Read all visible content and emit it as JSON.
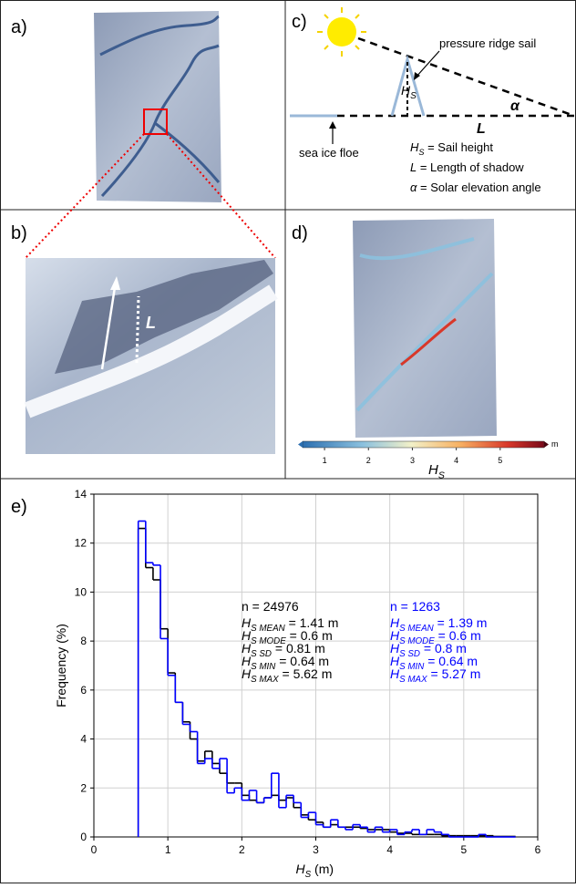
{
  "panels": {
    "a": {
      "label": "a)"
    },
    "b": {
      "label": "b)",
      "shadow_label": "L"
    },
    "c": {
      "label": "c)",
      "ridge_label": "pressure ridge sail",
      "height_symbol": {
        "h": "H",
        "sub": "S"
      },
      "angle_symbol": "α",
      "length_symbol": "L",
      "floe_label": "sea ice floe",
      "legend": [
        {
          "h": "H",
          "sub": "S",
          "rest": " = Sail height"
        },
        {
          "h": "L",
          "rest": " = Length of shadow"
        },
        {
          "h": "α",
          "rest": " = Solar elevation angle"
        }
      ]
    },
    "d": {
      "label": "d)",
      "colorbar": {
        "lim": [
          0.5,
          6
        ],
        "ticks": [
          1,
          2,
          3,
          4,
          5
        ],
        "unit": "m",
        "label": {
          "h": "H",
          "sub": "S"
        }
      }
    }
  },
  "chart_data": {
    "type": "histogram",
    "panel_label": "e)",
    "xlabel": {
      "h": "H",
      "sub": "S",
      "rest": " (m)"
    },
    "ylabel": "Frequency (%)",
    "bins": [
      0.6,
      0.7,
      0.8,
      0.9,
      1.0,
      1.1,
      1.2,
      1.3,
      1.4,
      1.5,
      1.6,
      1.7,
      1.8,
      1.9,
      2.0,
      2.1,
      2.2,
      2.3,
      2.4,
      2.5,
      2.6,
      2.7,
      2.8,
      2.9,
      3.0,
      3.1,
      3.2,
      3.3,
      3.4,
      3.5,
      3.6,
      3.7,
      3.8,
      3.9,
      4.0,
      4.1,
      4.2,
      4.3,
      4.4,
      4.5,
      4.6,
      4.7,
      4.8,
      4.9,
      5.0,
      5.1,
      5.2,
      5.3,
      5.4,
      5.5,
      5.6,
      5.7
    ],
    "series": [
      {
        "color": "#000000",
        "values": [
          12.6,
          11.0,
          10.5,
          8.5,
          6.7,
          5.5,
          4.7,
          4.0,
          3.1,
          3.5,
          3.0,
          2.6,
          2.2,
          2.2,
          1.7,
          1.5,
          1.4,
          1.6,
          1.7,
          1.5,
          1.6,
          1.2,
          0.9,
          0.7,
          0.6,
          0.4,
          0.5,
          0.4,
          0.4,
          0.4,
          0.35,
          0.3,
          0.3,
          0.3,
          0.2,
          0.15,
          0.15,
          0.1,
          0.1,
          0.1,
          0.1,
          0.05,
          0.05,
          0.05,
          0.05,
          0.05,
          0.05,
          0.05,
          0.02,
          0.02,
          0.02
        ]
      },
      {
        "color": "#0000ff",
        "values": [
          12.9,
          11.2,
          11.1,
          8.1,
          6.6,
          5.5,
          4.6,
          4.3,
          3.0,
          3.2,
          2.8,
          3.2,
          1.8,
          2.0,
          1.5,
          1.9,
          1.4,
          1.6,
          2.6,
          1.2,
          1.7,
          1.4,
          0.8,
          1.0,
          0.5,
          0.4,
          0.7,
          0.4,
          0.3,
          0.5,
          0.4,
          0.2,
          0.4,
          0.2,
          0.3,
          0.1,
          0.2,
          0.3,
          0.1,
          0.3,
          0.2,
          0.1,
          0,
          0,
          0,
          0,
          0.1,
          0,
          0,
          0,
          0
        ]
      }
    ],
    "xlim": [
      0,
      6
    ],
    "ylim": [
      0,
      14
    ],
    "xticks": [
      0,
      1,
      2,
      3,
      4,
      5,
      6
    ],
    "yticks": [
      0,
      2,
      4,
      6,
      8,
      10,
      12,
      14
    ],
    "grid": true,
    "annotations": [
      {
        "color": "#000000",
        "n": "n = 24976",
        "stats": [
          {
            "h": "H",
            "sub": "S MEAN",
            "rest": " = 1.41 m"
          },
          {
            "h": "H",
            "sub": "S MODE",
            "rest": " = 0.6 m"
          },
          {
            "h": "H",
            "sub": "S SD",
            "rest": " = 0.81 m"
          },
          {
            "h": "H",
            "sub": "S MIN",
            "rest": " = 0.64 m"
          },
          {
            "h": "H",
            "sub": "S MAX",
            "rest": " = 5.62 m"
          }
        ]
      },
      {
        "color": "#0000ff",
        "n": "n = 1263",
        "stats": [
          {
            "h": "H",
            "sub": "S MEAN",
            "rest": " = 1.39 m"
          },
          {
            "h": "H",
            "sub": "S MODE",
            "rest": " = 0.6 m"
          },
          {
            "h": "H",
            "sub": "S SD",
            "rest": " = 0.8 m"
          },
          {
            "h": "H",
            "sub": "S MIN",
            "rest": " = 0.64 m"
          },
          {
            "h": "H",
            "sub": "S MAX",
            "rest": " = 5.27 m"
          }
        ]
      }
    ]
  }
}
